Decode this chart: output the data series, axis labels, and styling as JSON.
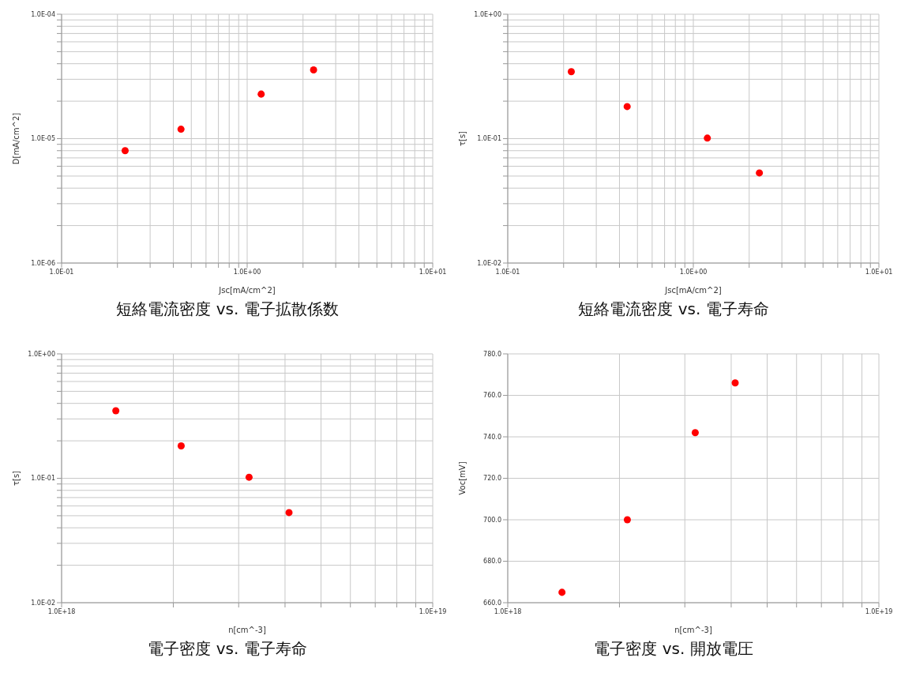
{
  "chart_data": [
    {
      "type": "scatter",
      "title": "短絡電流密度 vs. 電子拡散係数",
      "xlabel": "Jsc[mA/cm^2]",
      "ylabel": "D[mA/cm^2]",
      "log": "xy",
      "grid": true,
      "marker": "circle",
      "x": [
        0.22,
        0.44,
        1.19,
        2.28
      ],
      "series": [
        {
          "color": "#ff0000",
          "values": [
            8e-06,
            1.19e-05,
            2.28e-05,
            3.57e-05
          ]
        }
      ],
      "xlim": [
        0.1,
        10
      ],
      "xticks": [
        {
          "value": 0.1,
          "label": "1.0E-01"
        },
        {
          "value": 0.2,
          "label": null
        },
        {
          "value": 0.3,
          "label": null
        },
        {
          "value": 0.4,
          "label": null
        },
        {
          "value": 0.5,
          "label": null
        },
        {
          "value": 0.6,
          "label": null
        },
        {
          "value": 0.7,
          "label": null
        },
        {
          "value": 0.8,
          "label": null
        },
        {
          "value": 0.9,
          "label": null
        },
        {
          "value": 1,
          "label": "1.0E+00"
        },
        {
          "value": 2,
          "label": null
        },
        {
          "value": 3,
          "label": null
        },
        {
          "value": 4,
          "label": null
        },
        {
          "value": 5,
          "label": null
        },
        {
          "value": 6,
          "label": null
        },
        {
          "value": 7,
          "label": null
        },
        {
          "value": 8,
          "label": null
        },
        {
          "value": 9,
          "label": null
        },
        {
          "value": 10,
          "label": "1.0E+01"
        }
      ],
      "ylim": [
        1e-06,
        0.0001
      ],
      "yticks": [
        {
          "value": 1e-06,
          "label": "1.0E-06"
        },
        {
          "value": 2e-06,
          "label": null
        },
        {
          "value": 3e-06,
          "label": null
        },
        {
          "value": 4e-06,
          "label": null
        },
        {
          "value": 5e-06,
          "label": null
        },
        {
          "value": 6e-06,
          "label": null
        },
        {
          "value": 7e-06,
          "label": null
        },
        {
          "value": 8e-06,
          "label": null
        },
        {
          "value": 9e-06,
          "label": null
        },
        {
          "value": 1e-05,
          "label": "1.0E-05"
        },
        {
          "value": 2e-05,
          "label": null
        },
        {
          "value": 3e-05,
          "label": null
        },
        {
          "value": 4e-05,
          "label": null
        },
        {
          "value": 5e-05,
          "label": null
        },
        {
          "value": 6e-05,
          "label": null
        },
        {
          "value": 7e-05,
          "label": null
        },
        {
          "value": 8e-05,
          "label": null
        },
        {
          "value": 9e-05,
          "label": null
        },
        {
          "value": 0.0001,
          "label": "1.0E-04"
        }
      ]
    },
    {
      "type": "scatter",
      "title": "短絡電流密度 vs. 電子寿命",
      "xlabel": "Jsc[mA/cm^2]",
      "ylabel": "τ[s]",
      "log": "xy",
      "grid": true,
      "marker": "circle",
      "x": [
        0.22,
        0.44,
        1.19,
        2.27
      ],
      "series": [
        {
          "color": "#ff0000",
          "values": [
            0.345,
            0.181,
            0.101,
            0.053
          ]
        }
      ],
      "xlim": [
        0.1,
        10
      ],
      "xticks": [
        {
          "value": 0.1,
          "label": "1.0E-01"
        },
        {
          "value": 0.2,
          "label": null
        },
        {
          "value": 0.3,
          "label": null
        },
        {
          "value": 0.4,
          "label": null
        },
        {
          "value": 0.5,
          "label": null
        },
        {
          "value": 0.6,
          "label": null
        },
        {
          "value": 0.7,
          "label": null
        },
        {
          "value": 0.8,
          "label": null
        },
        {
          "value": 0.9,
          "label": null
        },
        {
          "value": 1,
          "label": "1.0E+00"
        },
        {
          "value": 2,
          "label": null
        },
        {
          "value": 3,
          "label": null
        },
        {
          "value": 4,
          "label": null
        },
        {
          "value": 5,
          "label": null
        },
        {
          "value": 6,
          "label": null
        },
        {
          "value": 7,
          "label": null
        },
        {
          "value": 8,
          "label": null
        },
        {
          "value": 9,
          "label": null
        },
        {
          "value": 10,
          "label": "1.0E+01"
        }
      ],
      "ylim": [
        0.01,
        1
      ],
      "yticks": [
        {
          "value": 0.01,
          "label": "1.0E-02"
        },
        {
          "value": 0.02,
          "label": null
        },
        {
          "value": 0.03,
          "label": null
        },
        {
          "value": 0.04,
          "label": null
        },
        {
          "value": 0.05,
          "label": null
        },
        {
          "value": 0.06,
          "label": null
        },
        {
          "value": 0.07,
          "label": null
        },
        {
          "value": 0.08,
          "label": null
        },
        {
          "value": 0.09,
          "label": null
        },
        {
          "value": 0.1,
          "label": "1.0E-01"
        },
        {
          "value": 0.2,
          "label": null
        },
        {
          "value": 0.3,
          "label": null
        },
        {
          "value": 0.4,
          "label": null
        },
        {
          "value": 0.5,
          "label": null
        },
        {
          "value": 0.6,
          "label": null
        },
        {
          "value": 0.7,
          "label": null
        },
        {
          "value": 0.8,
          "label": null
        },
        {
          "value": 0.9,
          "label": null
        },
        {
          "value": 1,
          "label": "1.0E+00"
        }
      ]
    },
    {
      "type": "scatter",
      "title": "電子密度 vs. 電子寿命",
      "xlabel": "n[cm^-3]",
      "ylabel": "τ[s]",
      "log": "xy",
      "grid": true,
      "marker": "circle",
      "x": [
        1.4e+18,
        2.1e+18,
        3.2e+18,
        4.1e+18
      ],
      "series": [
        {
          "color": "#ff0000",
          "values": [
            0.349,
            0.182,
            0.102,
            0.053
          ]
        }
      ],
      "xlim": [
        1e+18,
        1e+19
      ],
      "xticks": [
        {
          "value": 1e+18,
          "label": "1.0E+18"
        },
        {
          "value": 2e+18,
          "label": null
        },
        {
          "value": 3e+18,
          "label": null
        },
        {
          "value": 4e+18,
          "label": null
        },
        {
          "value": 5e+18,
          "label": null
        },
        {
          "value": 6e+18,
          "label": null
        },
        {
          "value": 7e+18,
          "label": null
        },
        {
          "value": 8e+18,
          "label": null
        },
        {
          "value": 9e+18,
          "label": null
        },
        {
          "value": 1e+19,
          "label": "1.0E+19"
        }
      ],
      "ylim": [
        0.01,
        1
      ],
      "yticks": [
        {
          "value": 0.01,
          "label": "1.0E-02"
        },
        {
          "value": 0.02,
          "label": null
        },
        {
          "value": 0.03,
          "label": null
        },
        {
          "value": 0.04,
          "label": null
        },
        {
          "value": 0.05,
          "label": null
        },
        {
          "value": 0.06,
          "label": null
        },
        {
          "value": 0.07,
          "label": null
        },
        {
          "value": 0.08,
          "label": null
        },
        {
          "value": 0.09,
          "label": null
        },
        {
          "value": 0.1,
          "label": "1.0E-01"
        },
        {
          "value": 0.2,
          "label": null
        },
        {
          "value": 0.3,
          "label": null
        },
        {
          "value": 0.4,
          "label": null
        },
        {
          "value": 0.5,
          "label": null
        },
        {
          "value": 0.6,
          "label": null
        },
        {
          "value": 0.7,
          "label": null
        },
        {
          "value": 0.8,
          "label": null
        },
        {
          "value": 0.9,
          "label": null
        },
        {
          "value": 1,
          "label": "1.0E+00"
        }
      ]
    },
    {
      "type": "scatter",
      "title": "電子密度 vs. 開放電圧",
      "xlabel": "n[cm^-3]",
      "ylabel": "Voc[mV]",
      "log": "x",
      "grid": true,
      "marker": "circle",
      "x": [
        1.4e+18,
        2.1e+18,
        3.2e+18,
        4.1e+18
      ],
      "series": [
        {
          "color": "#ff0000",
          "values": [
            665,
            700,
            742,
            766
          ]
        }
      ],
      "xlim": [
        1e+18,
        1e+19
      ],
      "xticks": [
        {
          "value": 1e+18,
          "label": "1.0E+18"
        },
        {
          "value": 2e+18,
          "label": null
        },
        {
          "value": 3e+18,
          "label": null
        },
        {
          "value": 4e+18,
          "label": null
        },
        {
          "value": 5e+18,
          "label": null
        },
        {
          "value": 6e+18,
          "label": null
        },
        {
          "value": 7e+18,
          "label": null
        },
        {
          "value": 8e+18,
          "label": null
        },
        {
          "value": 9e+18,
          "label": null
        },
        {
          "value": 1e+19,
          "label": "1.0E+19"
        }
      ],
      "ylim": [
        660,
        780
      ],
      "yticks": [
        {
          "value": 660,
          "label": "660.0"
        },
        {
          "value": 680,
          "label": "680.0"
        },
        {
          "value": 700,
          "label": "700.0"
        },
        {
          "value": 720,
          "label": "720.0"
        },
        {
          "value": 740,
          "label": "740.0"
        },
        {
          "value": 760,
          "label": "760.0"
        },
        {
          "value": 780,
          "label": "780.0"
        }
      ]
    }
  ]
}
